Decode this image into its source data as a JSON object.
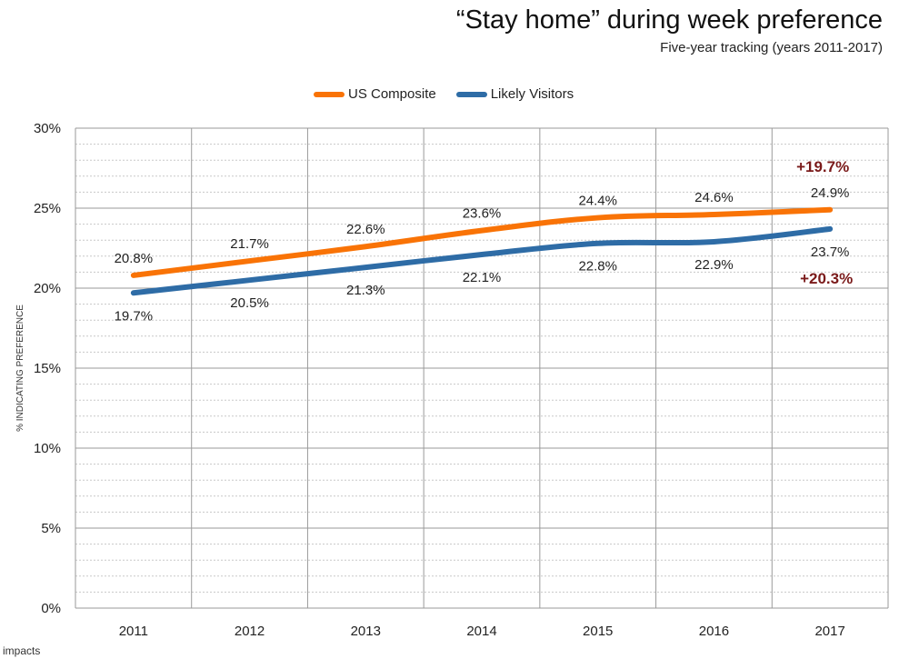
{
  "header": {
    "title": "“Stay home” during week preference",
    "subtitle": "Five-year tracking (years 2011-2017)"
  },
  "brand": "impacts",
  "colors": {
    "us_composite": "#f97306",
    "likely_visitors": "#2e6ca6",
    "callout": "#7a1a1a",
    "grid": "#9a9a9a",
    "minor_grid": "#c8c8c8"
  },
  "chart_data": {
    "type": "line",
    "title": "“Stay home” during week preference",
    "subtitle": "Five-year tracking (years 2011-2017)",
    "xlabel": "",
    "ylabel": "% INDICATING PREFERENCE",
    "categories": [
      "2011",
      "2012",
      "2013",
      "2014",
      "2015",
      "2016",
      "2017"
    ],
    "ylim": [
      0,
      30
    ],
    "yticks": [
      "0%",
      "5%",
      "10%",
      "15%",
      "20%",
      "25%",
      "30%"
    ],
    "grid": true,
    "legend_position": "top-center",
    "series": [
      {
        "name": "US Composite",
        "values": [
          20.8,
          21.7,
          22.6,
          23.6,
          24.4,
          24.6,
          24.9
        ],
        "labels": [
          "20.8%",
          "21.7%",
          "22.6%",
          "23.6%",
          "24.4%",
          "24.6%",
          "24.9%"
        ]
      },
      {
        "name": "Likely Visitors",
        "values": [
          19.7,
          20.5,
          21.3,
          22.1,
          22.8,
          22.9,
          23.7
        ],
        "labels": [
          "19.7%",
          "20.5%",
          "21.3%",
          "22.1%",
          "22.8%",
          "22.9%",
          "23.7%"
        ]
      }
    ],
    "annotations": [
      {
        "text": "+19.7%",
        "series": "US Composite"
      },
      {
        "text": "+20.3%",
        "series": "Likely Visitors"
      }
    ]
  }
}
